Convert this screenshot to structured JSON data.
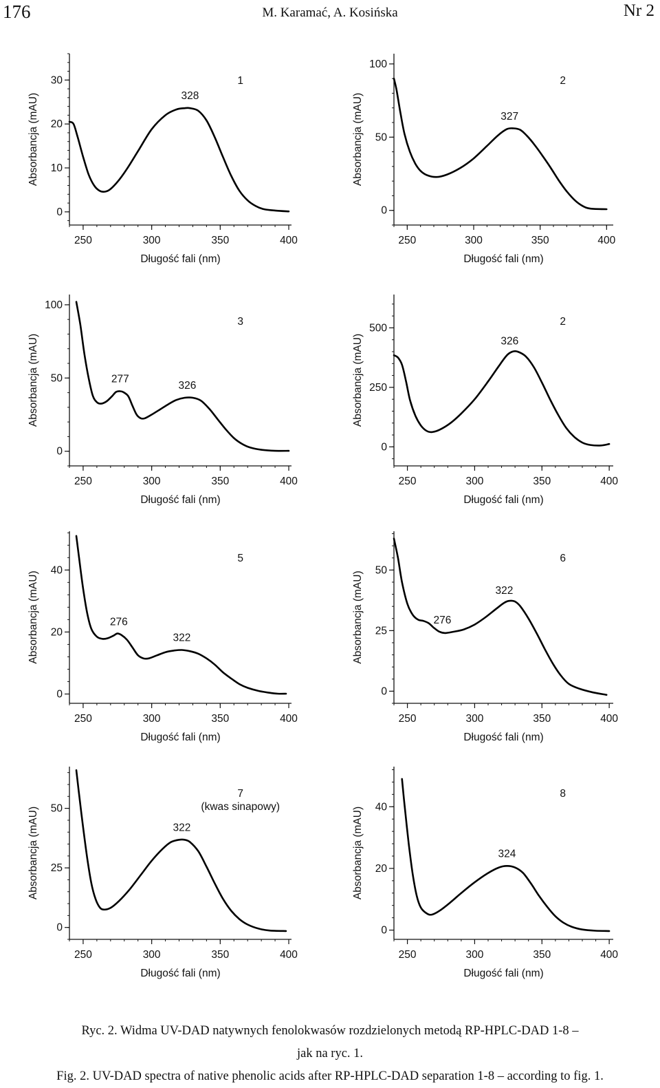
{
  "header": {
    "page_number": "176",
    "authors": "M. Karamać, A. Kosińska",
    "issue": "Nr 2"
  },
  "caption": {
    "pl_line1": "Ryc. 2. Widma UV-DAD natywnych fenolokwasów rozdzielonych metodą RP-HPLC-DAD 1-8 –",
    "pl_line2": "jak na ryc. 1.",
    "en": "Fig. 2. UV-DAD spectra of native phenolic acids after RP-HPLC-DAD separation 1-8 – according to fig. 1."
  },
  "chart_data": [
    {
      "type": "line",
      "label": "1",
      "xlabel": "Długość fali (nm)",
      "ylabel": "Absorbancja (mAU)",
      "xlim": [
        240,
        402
      ],
      "xticks": [
        250,
        300,
        350,
        400
      ],
      "ylim": [
        -3,
        36
      ],
      "yticks": [
        0,
        10,
        20,
        30
      ],
      "peaks": [
        {
          "x": 328,
          "label": "328"
        }
      ],
      "points": [
        [
          240,
          20.5
        ],
        [
          243,
          20
        ],
        [
          246,
          17
        ],
        [
          250,
          12.5
        ],
        [
          254,
          8.5
        ],
        [
          258,
          6
        ],
        [
          262,
          4.8
        ],
        [
          266,
          4.6
        ],
        [
          270,
          5.2
        ],
        [
          276,
          7.2
        ],
        [
          282,
          9.8
        ],
        [
          290,
          13.8
        ],
        [
          300,
          18.8
        ],
        [
          310,
          22
        ],
        [
          318,
          23.3
        ],
        [
          324,
          23.6
        ],
        [
          328,
          23.6
        ],
        [
          334,
          23
        ],
        [
          340,
          20.8
        ],
        [
          346,
          17
        ],
        [
          352,
          12.5
        ],
        [
          358,
          8.2
        ],
        [
          364,
          4.8
        ],
        [
          370,
          2.6
        ],
        [
          376,
          1.3
        ],
        [
          382,
          0.6
        ],
        [
          390,
          0.3
        ],
        [
          400,
          0.1
        ]
      ]
    },
    {
      "type": "line",
      "label": "2",
      "xlabel": "Długość fali (nm)",
      "ylabel": "Absorbancja (mAU)",
      "xlim": [
        240,
        405
      ],
      "xticks": [
        250,
        300,
        350,
        400
      ],
      "ylim": [
        -10,
        107
      ],
      "yticks": [
        0,
        50,
        100
      ],
      "peaks": [
        {
          "x": 327,
          "label": "327"
        }
      ],
      "points": [
        [
          240,
          90
        ],
        [
          242,
          82
        ],
        [
          245,
          66
        ],
        [
          248,
          52
        ],
        [
          252,
          40
        ],
        [
          256,
          32
        ],
        [
          260,
          27
        ],
        [
          265,
          24
        ],
        [
          272,
          22.8
        ],
        [
          280,
          24.5
        ],
        [
          290,
          29
        ],
        [
          300,
          35.5
        ],
        [
          310,
          44
        ],
        [
          318,
          51
        ],
        [
          325,
          55.5
        ],
        [
          330,
          56
        ],
        [
          335,
          55
        ],
        [
          340,
          51
        ],
        [
          346,
          44.5
        ],
        [
          352,
          37
        ],
        [
          358,
          29
        ],
        [
          364,
          20.5
        ],
        [
          370,
          13
        ],
        [
          376,
          7
        ],
        [
          382,
          3
        ],
        [
          388,
          1.2
        ],
        [
          400,
          0.8
        ]
      ]
    },
    {
      "type": "line",
      "label": "3",
      "xlabel": "Długość fali (nm)",
      "ylabel": "Absorbancja (mAU)",
      "xlim": [
        240,
        402
      ],
      "xticks": [
        250,
        300,
        350,
        400
      ],
      "ylim": [
        -10,
        107
      ],
      "yticks": [
        0,
        50,
        100
      ],
      "peaks": [
        {
          "x": 277,
          "label": "277"
        },
        {
          "x": 326,
          "label": "326"
        }
      ],
      "points": [
        [
          245,
          102
        ],
        [
          248,
          86
        ],
        [
          251,
          66
        ],
        [
          254,
          50
        ],
        [
          257,
          38
        ],
        [
          260,
          33.5
        ],
        [
          263,
          32.5
        ],
        [
          267,
          34
        ],
        [
          271,
          37.5
        ],
        [
          274,
          40.5
        ],
        [
          277,
          41
        ],
        [
          280,
          40
        ],
        [
          283,
          37.5
        ],
        [
          286,
          31
        ],
        [
          289,
          25
        ],
        [
          292,
          22.5
        ],
        [
          295,
          22.5
        ],
        [
          300,
          25
        ],
        [
          306,
          28.5
        ],
        [
          312,
          32
        ],
        [
          318,
          35
        ],
        [
          324,
          36.5
        ],
        [
          330,
          36.5
        ],
        [
          336,
          34.5
        ],
        [
          342,
          29
        ],
        [
          348,
          22
        ],
        [
          354,
          15
        ],
        [
          360,
          9
        ],
        [
          366,
          5
        ],
        [
          372,
          2.5
        ],
        [
          380,
          1
        ],
        [
          390,
          0.3
        ],
        [
          400,
          0.3
        ]
      ]
    },
    {
      "type": "line",
      "label": "2",
      "xlabel": "Długość fali (nm)",
      "ylabel": "Absorbancja (mAU)",
      "xlim": [
        240,
        403
      ],
      "xticks": [
        250,
        300,
        350,
        400
      ],
      "ylim": [
        -80,
        640
      ],
      "yticks": [
        0,
        250,
        500
      ],
      "peaks": [
        {
          "x": 326,
          "label": "326"
        }
      ],
      "points": [
        [
          240,
          385
        ],
        [
          243,
          375
        ],
        [
          246,
          345
        ],
        [
          249,
          275
        ],
        [
          252,
          195
        ],
        [
          256,
          130
        ],
        [
          260,
          90
        ],
        [
          264,
          68
        ],
        [
          268,
          62
        ],
        [
          274,
          72
        ],
        [
          282,
          100
        ],
        [
          290,
          140
        ],
        [
          300,
          200
        ],
        [
          310,
          275
        ],
        [
          318,
          340
        ],
        [
          324,
          385
        ],
        [
          328,
          400
        ],
        [
          332,
          400
        ],
        [
          338,
          380
        ],
        [
          344,
          335
        ],
        [
          350,
          270
        ],
        [
          356,
          200
        ],
        [
          362,
          135
        ],
        [
          368,
          80
        ],
        [
          374,
          42
        ],
        [
          380,
          18
        ],
        [
          386,
          8
        ],
        [
          394,
          6
        ],
        [
          400,
          12
        ]
      ]
    },
    {
      "type": "line",
      "label": "5",
      "xlabel": "Długość fali (nm)",
      "ylabel": "Absorbancja (mAU)",
      "xlim": [
        240,
        402
      ],
      "xticks": [
        250,
        300,
        350,
        400
      ],
      "ylim": [
        -3,
        52.5
      ],
      "yticks": [
        0,
        20,
        40
      ],
      "peaks": [
        {
          "x": 276,
          "label": "276"
        },
        {
          "x": 322,
          "label": "322"
        }
      ],
      "points": [
        [
          245,
          51
        ],
        [
          247,
          44
        ],
        [
          250,
          34
        ],
        [
          253,
          26
        ],
        [
          256,
          21
        ],
        [
          260,
          18.5
        ],
        [
          264,
          17.8
        ],
        [
          268,
          18
        ],
        [
          272,
          18.8
        ],
        [
          275,
          19.5
        ],
        [
          278,
          19
        ],
        [
          282,
          17.5
        ],
        [
          286,
          15
        ],
        [
          290,
          12.5
        ],
        [
          294,
          11.5
        ],
        [
          298,
          11.5
        ],
        [
          304,
          12.5
        ],
        [
          310,
          13.5
        ],
        [
          316,
          14
        ],
        [
          322,
          14.2
        ],
        [
          328,
          13.8
        ],
        [
          334,
          13
        ],
        [
          340,
          11.5
        ],
        [
          346,
          9.5
        ],
        [
          352,
          7
        ],
        [
          358,
          5
        ],
        [
          364,
          3.2
        ],
        [
          370,
          2
        ],
        [
          378,
          1
        ],
        [
          386,
          0.4
        ],
        [
          392,
          0.1
        ],
        [
          398,
          0.1
        ]
      ]
    },
    {
      "type": "line",
      "label": "6",
      "xlabel": "Długość fali (nm)",
      "ylabel": "Absorbancja (mAU)",
      "xlim": [
        240,
        403
      ],
      "xticks": [
        250,
        300,
        350,
        400
      ],
      "ylim": [
        -5,
        66
      ],
      "yticks": [
        0,
        25,
        50
      ],
      "peaks": [
        {
          "x": 276,
          "label": "276"
        },
        {
          "x": 322,
          "label": "322"
        }
      ],
      "points": [
        [
          240,
          63
        ],
        [
          243,
          55
        ],
        [
          246,
          45
        ],
        [
          250,
          36
        ],
        [
          254,
          31.5
        ],
        [
          258,
          29.5
        ],
        [
          262,
          29
        ],
        [
          266,
          28
        ],
        [
          270,
          26
        ],
        [
          274,
          24.5
        ],
        [
          278,
          24
        ],
        [
          284,
          24.5
        ],
        [
          292,
          25.5
        ],
        [
          300,
          27.5
        ],
        [
          308,
          30.5
        ],
        [
          316,
          34
        ],
        [
          322,
          36.5
        ],
        [
          326,
          37.3
        ],
        [
          330,
          37
        ],
        [
          334,
          35
        ],
        [
          340,
          30
        ],
        [
          346,
          24
        ],
        [
          352,
          17.5
        ],
        [
          358,
          11.5
        ],
        [
          364,
          6.5
        ],
        [
          370,
          3
        ],
        [
          378,
          1
        ],
        [
          388,
          -0.5
        ],
        [
          398,
          -1.5
        ]
      ]
    },
    {
      "type": "line",
      "label": "7",
      "sublabel": "(kwas sinapowy)",
      "xlabel": "Długość fali (nm)",
      "ylabel": "Absorbancja (mAU)",
      "xlim": [
        240,
        402
      ],
      "xticks": [
        250,
        300,
        350,
        400
      ],
      "ylim": [
        -5,
        67.5
      ],
      "yticks": [
        0,
        25,
        50
      ],
      "peaks": [
        {
          "x": 322,
          "label": "322"
        }
      ],
      "points": [
        [
          245,
          66
        ],
        [
          247,
          56
        ],
        [
          250,
          42
        ],
        [
          253,
          29
        ],
        [
          256,
          18.5
        ],
        [
          259,
          12
        ],
        [
          262,
          8.5
        ],
        [
          265,
          7.5
        ],
        [
          270,
          8.2
        ],
        [
          276,
          11
        ],
        [
          284,
          16
        ],
        [
          292,
          22
        ],
        [
          300,
          28
        ],
        [
          308,
          33
        ],
        [
          314,
          35.8
        ],
        [
          320,
          36.8
        ],
        [
          324,
          36.8
        ],
        [
          328,
          35.8
        ],
        [
          334,
          32
        ],
        [
          340,
          25.5
        ],
        [
          346,
          18.5
        ],
        [
          352,
          12
        ],
        [
          358,
          7
        ],
        [
          364,
          3.5
        ],
        [
          370,
          1.2
        ],
        [
          378,
          -0.5
        ],
        [
          386,
          -1.3
        ],
        [
          398,
          -1.5
        ]
      ]
    },
    {
      "type": "line",
      "label": "8",
      "xlabel": "Długość fali (nm)",
      "ylabel": "Absorbancja (mAU)",
      "xlim": [
        240,
        403
      ],
      "xticks": [
        250,
        300,
        350,
        400
      ],
      "ylim": [
        -3,
        53
      ],
      "yticks": [
        0,
        20,
        40
      ],
      "peaks": [
        {
          "x": 324,
          "label": "324"
        }
      ],
      "points": [
        [
          246,
          49
        ],
        [
          248,
          40
        ],
        [
          251,
          28
        ],
        [
          254,
          18
        ],
        [
          257,
          11
        ],
        [
          260,
          7.3
        ],
        [
          264,
          5.5
        ],
        [
          268,
          5
        ],
        [
          274,
          6.3
        ],
        [
          282,
          9
        ],
        [
          290,
          12
        ],
        [
          300,
          15.5
        ],
        [
          310,
          18.5
        ],
        [
          318,
          20.3
        ],
        [
          324,
          20.8
        ],
        [
          330,
          20.3
        ],
        [
          336,
          18.5
        ],
        [
          342,
          15
        ],
        [
          348,
          11
        ],
        [
          354,
          7.5
        ],
        [
          360,
          4.5
        ],
        [
          366,
          2.4
        ],
        [
          372,
          1.1
        ],
        [
          380,
          0.2
        ],
        [
          390,
          -0.2
        ],
        [
          400,
          -0.3
        ]
      ]
    }
  ]
}
